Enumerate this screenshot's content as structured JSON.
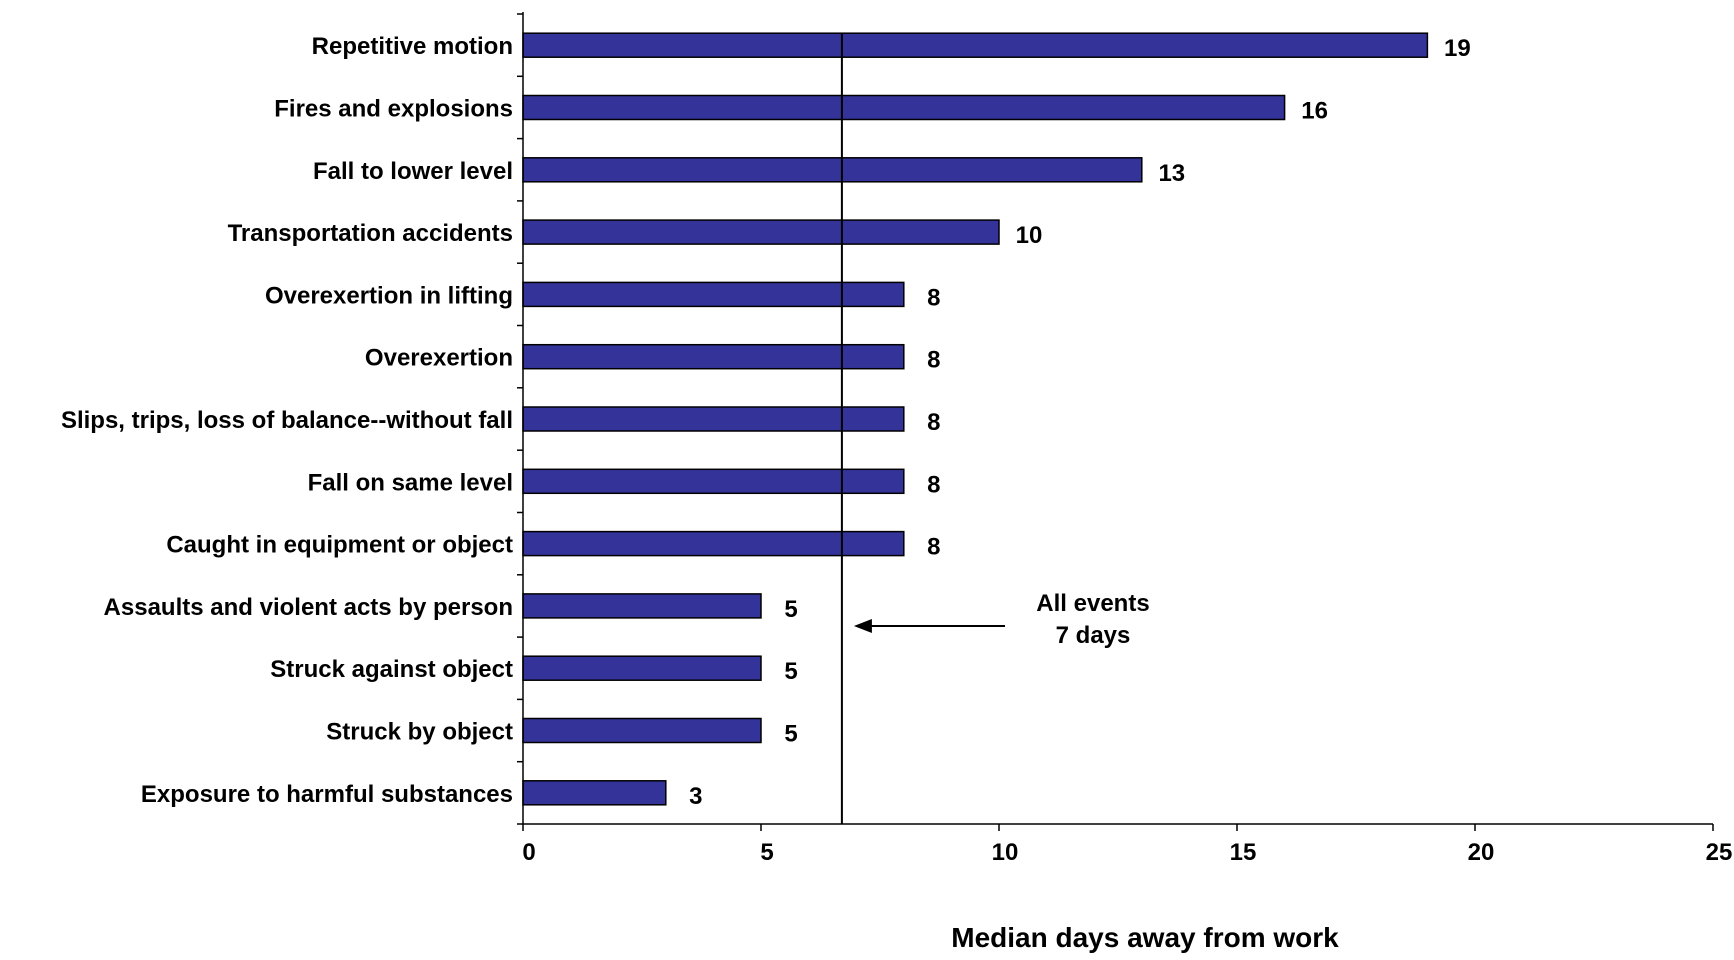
{
  "chart_data": {
    "type": "bar",
    "orientation": "horizontal",
    "categories": [
      "Repetitive motion",
      "Fires and explosions",
      "Fall to lower level",
      "Transportation accidents",
      "Overexertion in lifting",
      "Overexertion",
      "Slips, trips, loss of balance--without fall",
      "Fall on same level",
      "Caught in equipment or object",
      "Assaults and violent acts by person",
      "Struck against object",
      "Struck by object",
      "Exposure to harmful substances"
    ],
    "values": [
      19,
      16,
      13,
      10,
      8,
      8,
      8,
      8,
      8,
      5,
      5,
      5,
      3
    ],
    "data_labels": [
      "19",
      "16",
      "13",
      "10",
      "8",
      "8",
      "8",
      "8",
      "8",
      "5",
      "5",
      "5",
      "3"
    ],
    "xlabel": "Median days away from work",
    "ylabel": "",
    "xlim": [
      0,
      25
    ],
    "xticks": [
      "0",
      "5",
      "10",
      "15",
      "20",
      "25"
    ],
    "grid": false,
    "bar_color": "#333399",
    "bar_edge_color": "#000000",
    "reference_line": {
      "value": 6.7,
      "annotation_line1": "All events",
      "annotation_line2": "7 days"
    }
  }
}
